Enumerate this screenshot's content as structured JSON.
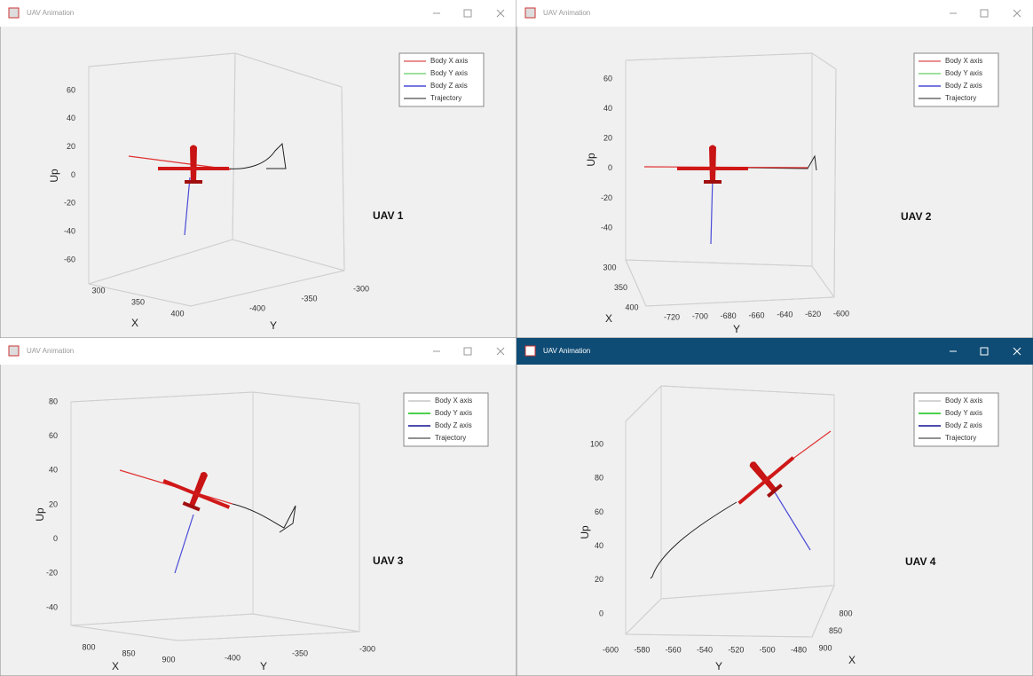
{
  "windows": [
    {
      "title": "UAV Animation",
      "z_label": "Up",
      "x_label": "X",
      "y_label": "Y",
      "uav_label": "UAV 1",
      "z_ticks": [
        60,
        40,
        20,
        0,
        -20,
        -40,
        -60
      ],
      "x_ticks": [
        300,
        350,
        400
      ],
      "y_ticks": [
        -400,
        -350,
        -300
      ],
      "legend": [
        {
          "name": "Body X axis",
          "color": "#d62020"
        },
        {
          "name": "Body Y axis",
          "color": "#7ed67e"
        },
        {
          "name": "Body Z axis",
          "color": "#4a4ad8"
        },
        {
          "name": "Trajectory",
          "color": "#222222"
        }
      ]
    },
    {
      "title": "UAV Animation",
      "z_label": "Up",
      "x_label": "X",
      "y_label": "Y",
      "uav_label": "UAV 2",
      "z_ticks": [
        60,
        40,
        20,
        0,
        -20,
        -40
      ],
      "x_ticks": [
        300,
        350,
        400
      ],
      "y_ticks": [
        -720,
        -700,
        -680,
        -660,
        -640,
        -620,
        -600
      ],
      "legend": [
        {
          "name": "Body X axis",
          "color": "#d62020"
        },
        {
          "name": "Body Y axis",
          "color": "#7ed67e"
        },
        {
          "name": "Body Z axis",
          "color": "#4a4ad8"
        },
        {
          "name": "Trajectory",
          "color": "#222222"
        }
      ]
    },
    {
      "title": "UAV Animation",
      "z_label": "Up",
      "x_label": "X",
      "y_label": "Y",
      "uav_label": "UAV 3",
      "z_ticks": [
        80,
        60,
        40,
        20,
        0,
        -20,
        -40
      ],
      "x_ticks": [
        800,
        850,
        900
      ],
      "y_ticks": [
        -400,
        -350,
        -300
      ],
      "legend": [
        {
          "name": "Body X axis",
          "color": "#aaaaaa"
        },
        {
          "name": "Body Y axis",
          "color": "#10c010"
        },
        {
          "name": "Body Z axis",
          "color": "#101090"
        },
        {
          "name": "Trajectory",
          "color": "#222222"
        }
      ]
    },
    {
      "title": "UAV Animation",
      "z_label": "Up",
      "x_label": "X",
      "y_label": "Y",
      "uav_label": "UAV 4",
      "z_ticks": [
        100,
        80,
        60,
        40,
        20,
        0
      ],
      "x_ticks": [
        800,
        850,
        900
      ],
      "y_ticks": [
        -600,
        -580,
        -560,
        -540,
        -520,
        -500,
        -480
      ],
      "legend": [
        {
          "name": "Body X axis",
          "color": "#aaaaaa"
        },
        {
          "name": "Body Y axis",
          "color": "#10c010"
        },
        {
          "name": "Body Z axis",
          "color": "#101090"
        },
        {
          "name": "Trajectory",
          "color": "#222222"
        }
      ]
    }
  ]
}
